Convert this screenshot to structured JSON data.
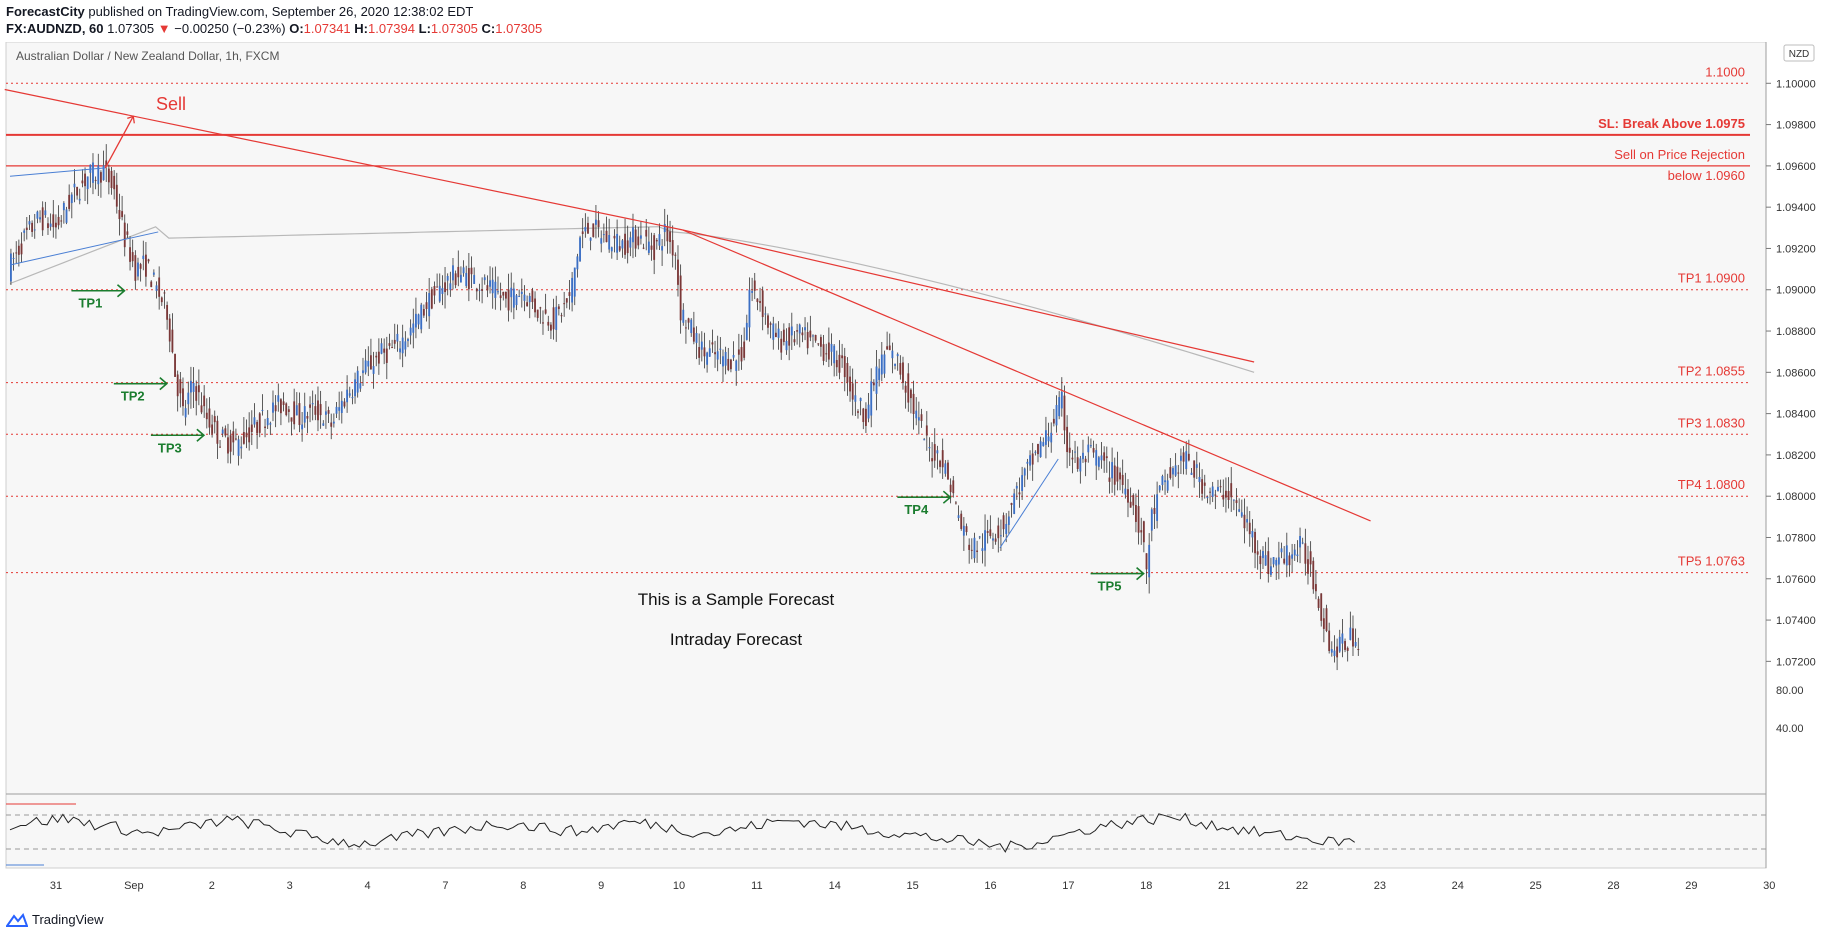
{
  "header": {
    "publisher": "ForecastCity",
    "published_text": "published on TradingView.com, September 26, 2020 12:38:02 EDT",
    "symbol": "FX:AUDNZD, 60",
    "last": "1.07305",
    "change_arrow": "▼",
    "change": "−0.00250 (−0.23%)",
    "o_label": "O:",
    "o": "1.07341",
    "h_label": "H:",
    "h": "1.07394",
    "l_label": "L:",
    "l": "1.07305",
    "c_label": "C:",
    "c": "1.07305"
  },
  "footer": {
    "brand": "TradingView"
  },
  "colors": {
    "up": "#3b6fc4",
    "down": "#7a3838",
    "level": "#e53935",
    "trend": "#e53935",
    "target": "#1b7d2f",
    "ma": "#b8b8b8",
    "wedge": "#4a7fd4",
    "panel_bg": "#f7f7f7"
  },
  "chart_data": {
    "type": "candlestick",
    "title": "Australian Dollar / New Zealand Dollar, 1h, FXCM",
    "currency_badge": "NZD",
    "ylim": [
      1.071,
      1.102
    ],
    "y_ticks": [
      "1.10000",
      "1.09800",
      "1.09600",
      "1.09400",
      "1.09200",
      "1.09000",
      "1.08800",
      "1.08600",
      "1.08400",
      "1.08200",
      "1.08000",
      "1.07800",
      "1.07600",
      "1.07400",
      "1.07200"
    ],
    "x_ticks": [
      "31",
      "Sep",
      "2",
      "3",
      "4",
      "7",
      "8",
      "9",
      "10",
      "11",
      "14",
      "15",
      "16",
      "17",
      "18",
      "21",
      "22",
      "23",
      "24",
      "25",
      "28",
      "29",
      "30"
    ],
    "levels": [
      {
        "label": "1.1000",
        "value": 1.1,
        "style": "dotted"
      },
      {
        "label": "SL: Break Above 1.0975",
        "value": 1.0975,
        "style": "solid-thick"
      },
      {
        "label": "Sell on Price Rejection",
        "label2": "below 1.0960",
        "value": 1.096,
        "style": "solid"
      },
      {
        "label": "TP1 1.0900",
        "value": 1.09,
        "style": "dotted"
      },
      {
        "label": "TP2 1.0855",
        "value": 1.0855,
        "style": "dotted"
      },
      {
        "label": "TP3 1.0830",
        "value": 1.083,
        "style": "dotted"
      },
      {
        "label": "TP4 1.0800",
        "value": 1.08,
        "style": "dotted"
      },
      {
        "label": "TP5 1.0763",
        "value": 1.0763,
        "style": "dotted"
      }
    ],
    "annotations": {
      "sell": "Sell",
      "tp_markers": [
        "TP1",
        "TP2",
        "TP3",
        "TP4",
        "TP5"
      ],
      "note1": "This is a Sample Forecast",
      "note2": "Intraday Forecast"
    },
    "rsi": {
      "ticks": [
        "80.00",
        "40.00"
      ],
      "ylim": [
        10,
        90
      ],
      "bands": [
        70,
        30
      ],
      "approx_values": [
        58,
        62,
        66,
        60,
        55,
        48,
        52,
        58,
        64,
        60,
        52,
        45,
        40,
        36,
        40,
        46,
        50,
        55,
        60,
        58,
        54,
        50,
        56,
        62,
        58,
        52,
        48,
        54,
        60,
        64,
        60,
        56,
        52,
        48,
        44,
        40,
        36,
        32,
        38,
        46,
        54,
        60,
        64,
        68,
        62,
        56,
        50,
        46,
        42,
        38,
        40
      ]
    },
    "price_path": [
      [
        0,
        1.091
      ],
      [
        6,
        1.0925
      ],
      [
        12,
        1.0935
      ],
      [
        18,
        1.093
      ],
      [
        24,
        1.0945
      ],
      [
        30,
        1.0955
      ],
      [
        36,
        1.0958
      ],
      [
        40,
        1.0948
      ],
      [
        44,
        1.0925
      ],
      [
        48,
        1.091
      ],
      [
        52,
        1.0912
      ],
      [
        56,
        1.09
      ],
      [
        60,
        1.089
      ],
      [
        63,
        1.086
      ],
      [
        66,
        1.084
      ],
      [
        70,
        1.0855
      ],
      [
        74,
        1.084
      ],
      [
        80,
        1.0828
      ],
      [
        86,
        1.0825
      ],
      [
        92,
        1.0832
      ],
      [
        98,
        1.084
      ],
      [
        104,
        1.0845
      ],
      [
        110,
        1.0838
      ],
      [
        116,
        1.0842
      ],
      [
        122,
        1.0835
      ],
      [
        128,
        1.085
      ],
      [
        134,
        1.086
      ],
      [
        140,
        1.0868
      ],
      [
        146,
        1.0872
      ],
      [
        152,
        1.088
      ],
      [
        158,
        1.0893
      ],
      [
        164,
        1.0902
      ],
      [
        170,
        1.0908
      ],
      [
        176,
        1.0905
      ],
      [
        182,
        1.09
      ],
      [
        188,
        1.0895
      ],
      [
        194,
        1.09
      ],
      [
        200,
        1.089
      ],
      [
        206,
        1.0885
      ],
      [
        212,
        1.0895
      ],
      [
        216,
        1.0925
      ],
      [
        220,
        1.093
      ],
      [
        226,
        1.0925
      ],
      [
        232,
        1.0922
      ],
      [
        238,
        1.0926
      ],
      [
        244,
        1.092
      ],
      [
        248,
        1.0928
      ],
      [
        252,
        1.0918
      ],
      [
        254,
        1.089
      ],
      [
        258,
        1.088
      ],
      [
        262,
        1.087
      ],
      [
        268,
        1.0868
      ],
      [
        274,
        1.0866
      ],
      [
        278,
        1.087
      ],
      [
        280,
        1.09
      ],
      [
        284,
        1.0895
      ],
      [
        288,
        1.088
      ],
      [
        292,
        1.0875
      ],
      [
        298,
        1.0878
      ],
      [
        304,
        1.0874
      ],
      [
        310,
        1.087
      ],
      [
        316,
        1.0862
      ],
      [
        320,
        1.0845
      ],
      [
        324,
        1.084
      ],
      [
        328,
        1.086
      ],
      [
        332,
        1.087
      ],
      [
        336,
        1.0865
      ],
      [
        340,
        1.085
      ],
      [
        344,
        1.0835
      ],
      [
        348,
        1.0822
      ],
      [
        352,
        1.082
      ],
      [
        356,
        1.0805
      ],
      [
        360,
        1.0785
      ],
      [
        364,
        1.0775
      ],
      [
        368,
        1.0778
      ],
      [
        372,
        1.0782
      ],
      [
        376,
        1.0786
      ],
      [
        380,
        1.08
      ],
      [
        384,
        1.081
      ],
      [
        388,
        1.082
      ],
      [
        392,
        1.0828
      ],
      [
        396,
        1.084
      ],
      [
        398,
        1.0845
      ],
      [
        400,
        1.0825
      ],
      [
        404,
        1.0815
      ],
      [
        408,
        1.082
      ],
      [
        412,
        1.0818
      ],
      [
        416,
        1.0812
      ],
      [
        420,
        1.0808
      ],
      [
        424,
        1.08
      ],
      [
        428,
        1.0782
      ],
      [
        430,
        1.0765
      ],
      [
        432,
        1.079
      ],
      [
        436,
        1.0805
      ],
      [
        440,
        1.0812
      ],
      [
        444,
        1.0818
      ],
      [
        448,
        1.0812
      ],
      [
        452,
        1.0805
      ],
      [
        456,
        1.08
      ],
      [
        460,
        1.0803
      ],
      [
        464,
        1.0795
      ],
      [
        468,
        1.0785
      ],
      [
        472,
        1.0775
      ],
      [
        476,
        1.0766
      ],
      [
        480,
        1.077
      ],
      [
        484,
        1.0772
      ],
      [
        488,
        1.0775
      ],
      [
        492,
        1.0765
      ],
      [
        496,
        1.0745
      ],
      [
        500,
        1.0725
      ],
      [
        504,
        1.0728
      ],
      [
        508,
        1.0732
      ],
      [
        510,
        1.0731
      ]
    ]
  }
}
